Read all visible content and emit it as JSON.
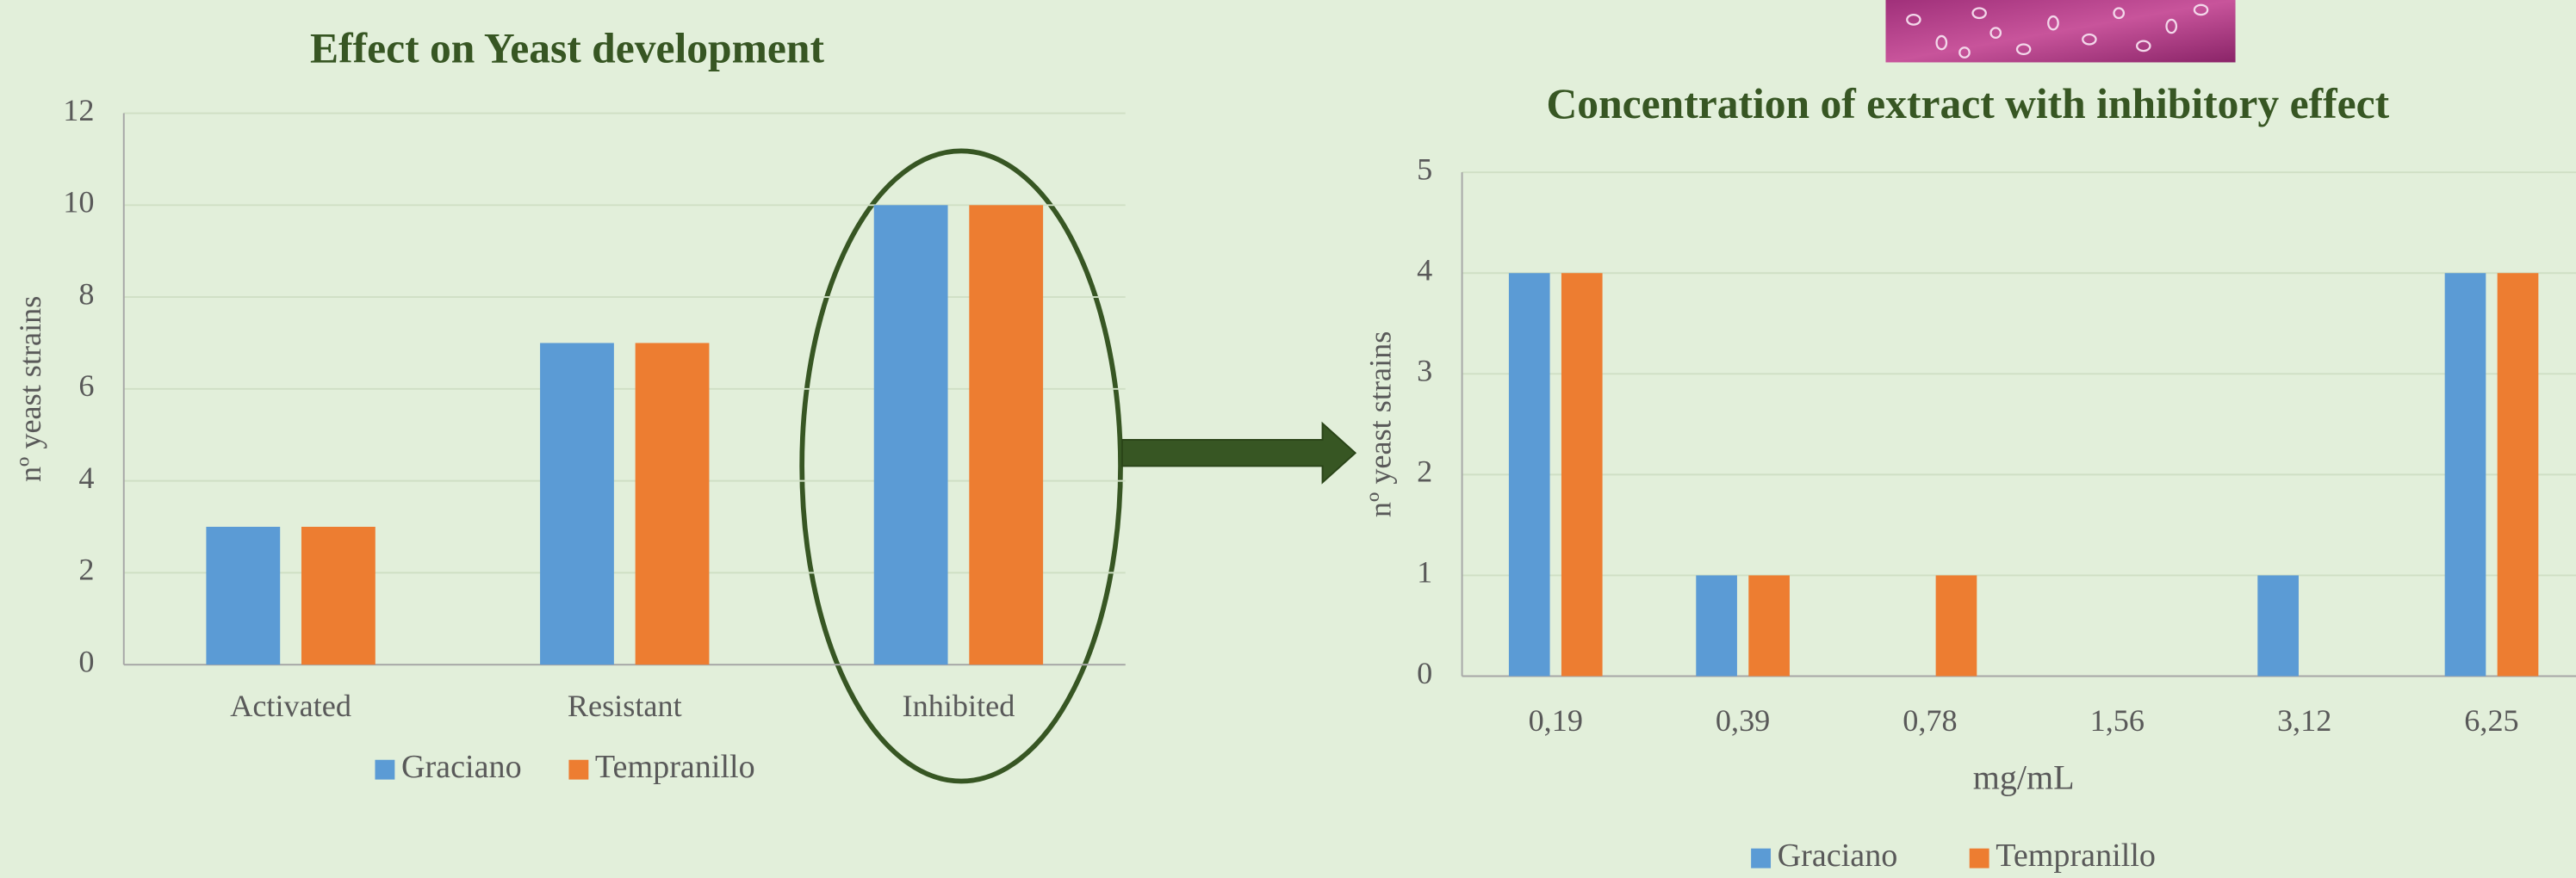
{
  "chart_data": [
    {
      "type": "bar",
      "title": "Effect on Yeast development",
      "y_label": "nº yeast strains",
      "categories": [
        "Activated",
        "Resistant",
        "Inhibited"
      ],
      "series": [
        {
          "name": "Graciano",
          "color": "#5b9bd5",
          "values": [
            3,
            7,
            10
          ]
        },
        {
          "name": "Tempranillo",
          "color": "#ed7d31",
          "values": [
            3,
            7,
            10
          ]
        }
      ],
      "ylim": [
        0,
        12
      ],
      "yticks": [
        0,
        2,
        4,
        6,
        8,
        10,
        12
      ],
      "grid": true
    },
    {
      "type": "bar",
      "title": "Concentration of extract with inhibitory effect",
      "y_label": "nº yeast strains",
      "x_label": "mg/mL",
      "categories": [
        "0,19",
        "0,39",
        "0,78",
        "1,56",
        "3,12",
        "6,25"
      ],
      "series": [
        {
          "name": "Graciano",
          "color": "#5b9bd5",
          "values": [
            4,
            1,
            0,
            0,
            1,
            4
          ]
        },
        {
          "name": "Tempranillo",
          "color": "#ed7d31",
          "values": [
            4,
            1,
            1,
            0,
            0,
            4
          ]
        }
      ],
      "ylim": [
        0,
        5
      ],
      "yticks": [
        0,
        1,
        2,
        3,
        4,
        5
      ],
      "grid": true
    }
  ]
}
